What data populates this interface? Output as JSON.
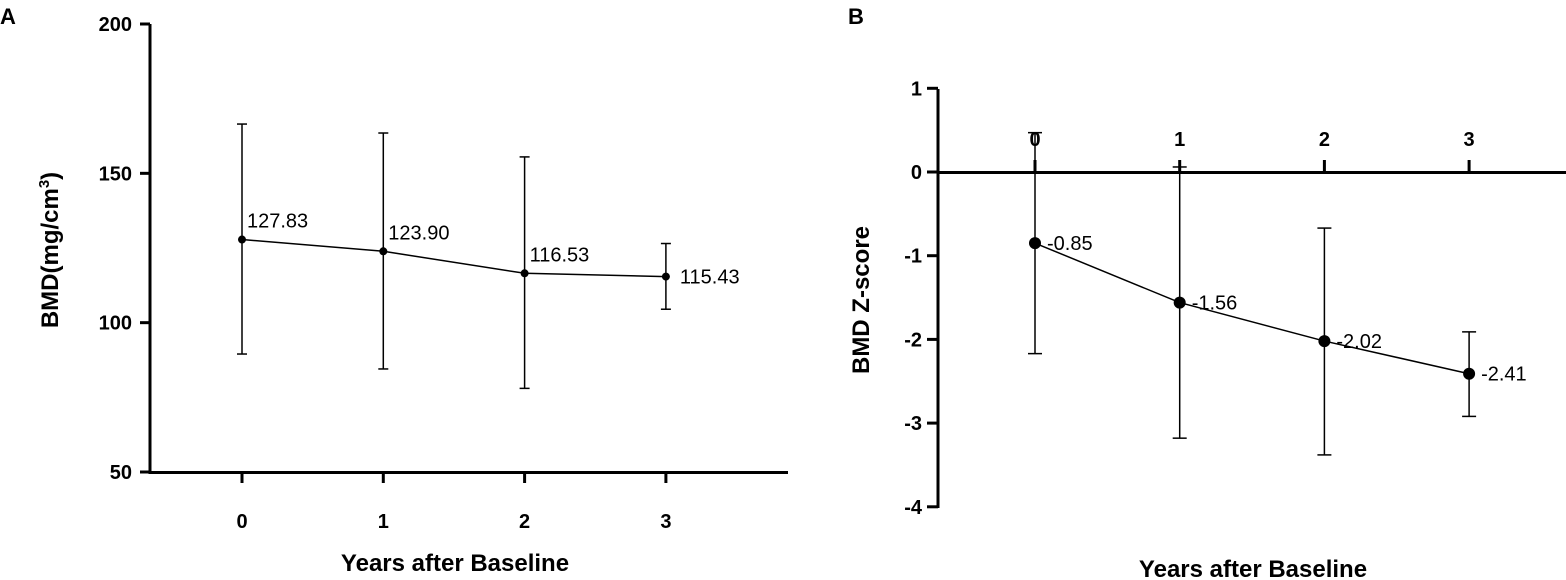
{
  "chart_data": [
    {
      "panel": "A",
      "type": "line",
      "xlabel": "Years after Baseline",
      "ylabel": "BMD(mg/cm",
      "ylabel_sup": "3",
      "ylabel_close": ")",
      "x": [
        0,
        1,
        2,
        3
      ],
      "xticks": [
        "0",
        "1",
        "2",
        "3"
      ],
      "ylim": [
        50,
        200
      ],
      "yticks": [
        "50",
        "100",
        "150",
        "200"
      ],
      "series": [
        {
          "values": [
            127.83,
            123.9,
            116.53,
            115.43
          ],
          "error_low": [
            89.5,
            84.5,
            78,
            104.5
          ],
          "error_high": [
            166.5,
            163.5,
            155.5,
            126.5
          ],
          "labels": [
            "127.83",
            "123.90",
            "116.53",
            "115.43"
          ]
        }
      ],
      "grid": false
    },
    {
      "panel": "B",
      "type": "line",
      "xlabel": "Years after Baseline",
      "ylabel": "BMD Z-score",
      "x": [
        0,
        1,
        2,
        3
      ],
      "xticks": [
        "0",
        "1",
        "2",
        "3"
      ],
      "ylim": [
        -4,
        1
      ],
      "yticks": [
        "1",
        "0",
        "-1",
        "-2",
        "-3",
        "-4"
      ],
      "series": [
        {
          "values": [
            -0.85,
            -1.56,
            -2.02,
            -2.41
          ],
          "error_low": [
            -2.17,
            -3.18,
            -3.38,
            -2.92
          ],
          "error_high": [
            0.47,
            0.06,
            -0.67,
            -1.91
          ],
          "labels": [
            "-0.85",
            "-1.56",
            "-2.02",
            "-2.41"
          ]
        }
      ],
      "grid": false
    }
  ]
}
